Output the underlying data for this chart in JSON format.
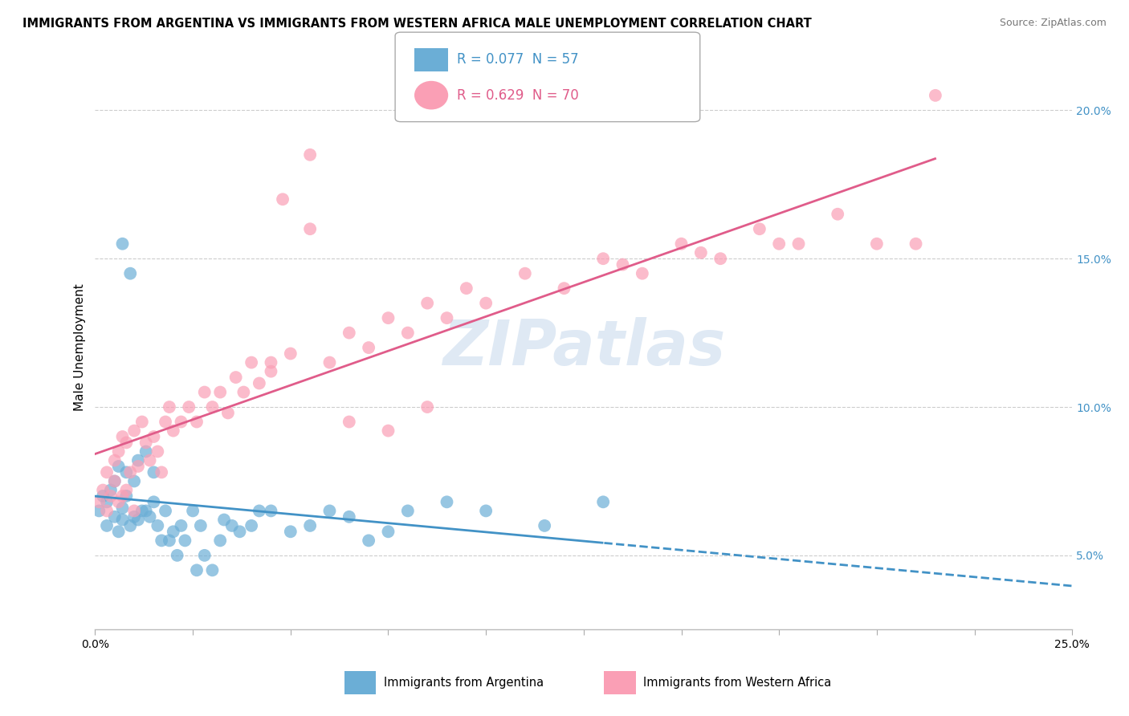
{
  "title": "IMMIGRANTS FROM ARGENTINA VS IMMIGRANTS FROM WESTERN AFRICA MALE UNEMPLOYMENT CORRELATION CHART",
  "source": "Source: ZipAtlas.com",
  "ylabel": "Male Unemployment",
  "legend_argentina": "R = 0.077  N = 57",
  "legend_western_africa": "R = 0.629  N = 70",
  "legend_label_argentina": "Immigrants from Argentina",
  "legend_label_western_africa": "Immigrants from Western Africa",
  "xlim": [
    0,
    0.25
  ],
  "ylim": [
    0.025,
    0.215
  ],
  "yticks": [
    0.05,
    0.1,
    0.15,
    0.2
  ],
  "ytick_labels": [
    "5.0%",
    "10.0%",
    "15.0%",
    "20.0%"
  ],
  "color_argentina": "#6baed6",
  "color_western_africa": "#fa9fb5",
  "color_argentina_line": "#4292c6",
  "color_western_africa_line": "#e05c8a",
  "watermark": "ZIPatlas",
  "argentina_x": [
    0.001,
    0.002,
    0.003,
    0.003,
    0.004,
    0.005,
    0.005,
    0.006,
    0.006,
    0.007,
    0.007,
    0.007,
    0.008,
    0.008,
    0.009,
    0.009,
    0.01,
    0.01,
    0.011,
    0.011,
    0.012,
    0.013,
    0.013,
    0.014,
    0.015,
    0.015,
    0.016,
    0.017,
    0.018,
    0.019,
    0.02,
    0.021,
    0.022,
    0.023,
    0.025,
    0.026,
    0.027,
    0.028,
    0.03,
    0.032,
    0.033,
    0.035,
    0.037,
    0.04,
    0.042,
    0.045,
    0.05,
    0.055,
    0.06,
    0.065,
    0.07,
    0.075,
    0.08,
    0.09,
    0.1,
    0.115,
    0.13
  ],
  "argentina_y": [
    0.065,
    0.07,
    0.06,
    0.068,
    0.072,
    0.063,
    0.075,
    0.058,
    0.08,
    0.062,
    0.066,
    0.155,
    0.07,
    0.078,
    0.06,
    0.145,
    0.063,
    0.075,
    0.062,
    0.082,
    0.065,
    0.085,
    0.065,
    0.063,
    0.068,
    0.078,
    0.06,
    0.055,
    0.065,
    0.055,
    0.058,
    0.05,
    0.06,
    0.055,
    0.065,
    0.045,
    0.06,
    0.05,
    0.045,
    0.055,
    0.062,
    0.06,
    0.058,
    0.06,
    0.065,
    0.065,
    0.058,
    0.06,
    0.065,
    0.063,
    0.055,
    0.058,
    0.065,
    0.068,
    0.065,
    0.06,
    0.068
  ],
  "western_africa_x": [
    0.001,
    0.002,
    0.003,
    0.003,
    0.004,
    0.005,
    0.005,
    0.006,
    0.006,
    0.007,
    0.007,
    0.008,
    0.008,
    0.009,
    0.01,
    0.01,
    0.011,
    0.012,
    0.013,
    0.014,
    0.015,
    0.016,
    0.017,
    0.018,
    0.019,
    0.02,
    0.022,
    0.024,
    0.026,
    0.028,
    0.03,
    0.032,
    0.034,
    0.036,
    0.038,
    0.04,
    0.042,
    0.045,
    0.048,
    0.05,
    0.055,
    0.06,
    0.065,
    0.07,
    0.075,
    0.08,
    0.085,
    0.09,
    0.095,
    0.1,
    0.11,
    0.12,
    0.13,
    0.14,
    0.15,
    0.16,
    0.17,
    0.18,
    0.19,
    0.2,
    0.21,
    0.215,
    0.175,
    0.155,
    0.135,
    0.045,
    0.055,
    0.065,
    0.075,
    0.085
  ],
  "western_africa_y": [
    0.068,
    0.072,
    0.065,
    0.078,
    0.07,
    0.075,
    0.082,
    0.068,
    0.085,
    0.07,
    0.09,
    0.072,
    0.088,
    0.078,
    0.065,
    0.092,
    0.08,
    0.095,
    0.088,
    0.082,
    0.09,
    0.085,
    0.078,
    0.095,
    0.1,
    0.092,
    0.095,
    0.1,
    0.095,
    0.105,
    0.1,
    0.105,
    0.098,
    0.11,
    0.105,
    0.115,
    0.108,
    0.112,
    0.17,
    0.118,
    0.185,
    0.115,
    0.125,
    0.12,
    0.13,
    0.125,
    0.135,
    0.13,
    0.14,
    0.135,
    0.145,
    0.14,
    0.15,
    0.145,
    0.155,
    0.15,
    0.16,
    0.155,
    0.165,
    0.155,
    0.155,
    0.205,
    0.155,
    0.152,
    0.148,
    0.115,
    0.16,
    0.095,
    0.092,
    0.1
  ]
}
